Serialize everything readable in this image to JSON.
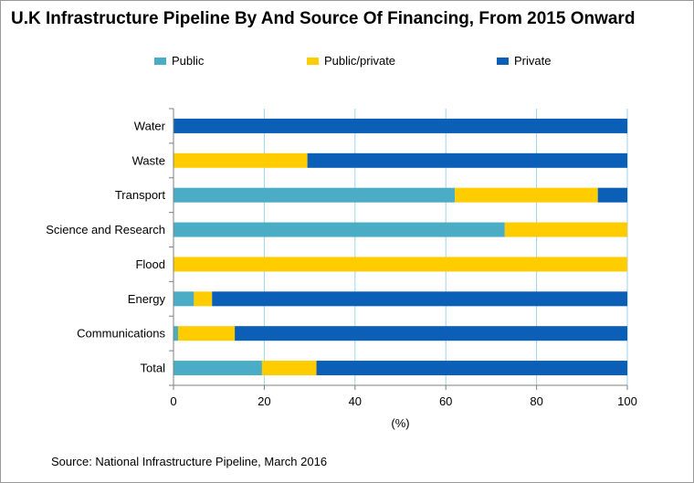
{
  "title": "U.K Infrastructure Pipeline By And Source Of Financing, From 2015 Onward",
  "source": "Source: National Infrastructure Pipeline, March 2016",
  "legend": [
    {
      "name": "Public",
      "color": "#4bacc6"
    },
    {
      "name": "Public/private",
      "color": "#ffcc00"
    },
    {
      "name": "Private",
      "color": "#0b5fb7"
    }
  ],
  "chart_data": {
    "type": "bar",
    "orientation": "horizontal",
    "stacked": true,
    "categories": [
      "Water",
      "Waste",
      "Transport",
      "Science and Research",
      "Flood",
      "Energy",
      "Communications",
      "Total"
    ],
    "series": [
      {
        "name": "Public",
        "color": "#4bacc6",
        "values": [
          0,
          0,
          62,
          73,
          0,
          4.5,
          1,
          19.5
        ]
      },
      {
        "name": "Public/private",
        "color": "#ffcc00",
        "values": [
          0,
          29.5,
          31.5,
          27,
          100,
          4,
          12.5,
          12
        ]
      },
      {
        "name": "Private",
        "color": "#0b5fb7",
        "values": [
          100,
          70.5,
          6.5,
          0,
          0,
          91.5,
          86.5,
          68.5
        ]
      }
    ],
    "xlabel": "(%)",
    "xlim": [
      0,
      100
    ],
    "xticks": [
      0,
      20,
      40,
      60,
      80,
      100
    ],
    "xtick_labels": [
      "0",
      "20",
      "40",
      "60",
      "80",
      "100"
    ],
    "grid": "vertical",
    "legend_position": "top"
  }
}
